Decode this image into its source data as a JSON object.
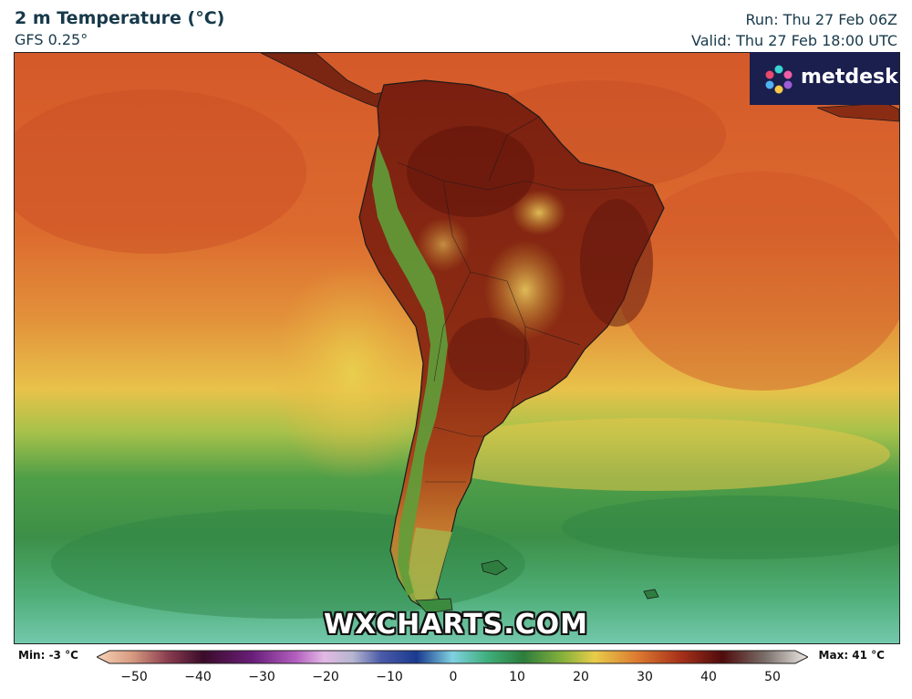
{
  "header": {
    "title": "2 m Temperature (°C)",
    "model": "GFS 0.25°",
    "run": "Run: Thu 27 Feb 06Z",
    "valid": "Valid: Thu 27 Feb 18:00 UTC"
  },
  "logo": {
    "text": "metdesk",
    "icon": "metdesk-flower-icon"
  },
  "watermark": "WXCHARTS.COM",
  "legend": {
    "min_label": "Min: -3 °C",
    "max_label": "Max: 41 °C",
    "ticks": [
      "−50",
      "−40",
      "−30",
      "−20",
      "−10",
      "0",
      "10",
      "20",
      "30",
      "40",
      "50"
    ]
  },
  "colors": {
    "ocean_warm": "#d2592a",
    "ocean_mid": "#e38a36",
    "band_yellow": "#e6c84a",
    "ocean_green": "#3f9a4c",
    "ocean_cool": "#6dc4a8",
    "land_hot": "#6e1a0f",
    "land_warm": "#9e3a17",
    "andes_green": "#5a9e3a",
    "logo_bg": "#1a1f4e"
  }
}
